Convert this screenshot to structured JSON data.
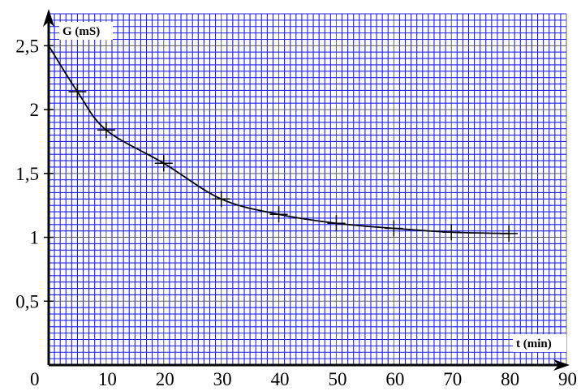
{
  "chart_data": {
    "type": "scatter",
    "title": "",
    "xlabel": "t (min)",
    "ylabel": "G (mS)",
    "xlim": [
      0,
      90
    ],
    "ylim": [
      0,
      2.75
    ],
    "grid": true,
    "x_tick_labels": [
      "0",
      "10",
      "20",
      "30",
      "40",
      "50",
      "60",
      "70",
      "80",
      "90"
    ],
    "x_tick_values": [
      0,
      10,
      20,
      30,
      40,
      50,
      60,
      70,
      80,
      90
    ],
    "y_tick_labels": [
      "0,5",
      "1",
      "1,5",
      "2",
      "2,5"
    ],
    "y_tick_values": [
      0.5,
      1,
      1.5,
      2,
      2.5
    ],
    "points": [
      {
        "x": 0,
        "y": 2.5
      },
      {
        "x": 5,
        "y": 2.14
      },
      {
        "x": 10,
        "y": 1.84
      },
      {
        "x": 20,
        "y": 1.58
      },
      {
        "x": 30,
        "y": 1.3
      },
      {
        "x": 40,
        "y": 1.18
      },
      {
        "x": 50,
        "y": 1.11
      },
      {
        "x": 60,
        "y": 1.07
      },
      {
        "x": 70,
        "y": 1.04
      },
      {
        "x": 80,
        "y": 1.03
      }
    ],
    "fit_curve": true,
    "colors": {
      "grid": "#1e1ef0",
      "background": "#ffffff",
      "axes": "#000000",
      "curve": "#000000"
    }
  }
}
